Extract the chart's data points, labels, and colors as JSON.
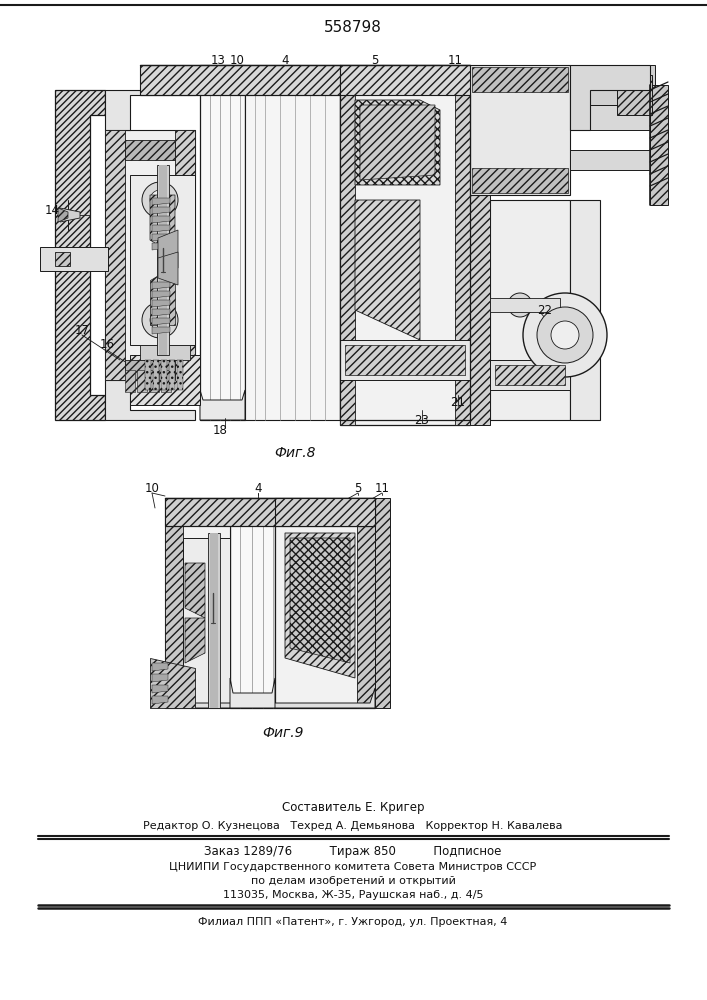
{
  "patent_number": "558798",
  "fig8_caption": "Фиг.8",
  "fig9_caption": "Фиг.9",
  "footer_line0": "Составитель Е. Кригер",
  "footer_line1": "Редактор О. Кузнецова   Техред А. Демьянова   Корректор Н. Кавалева",
  "footer_line2": "Заказ 1289/76          Тираж 850          Подписное",
  "footer_line3": "ЦНИИПИ Государственного комитета Совета Министров СССР",
  "footer_line4": "по делам изобретений и открытий",
  "footer_line5": "113035, Москва, Ж-35, Раушская наб., д. 4/5",
  "footer_line6": "Филиал ППП «Патент», г. Ужгород, ул. Проектная, 4",
  "bg_color": "#ffffff",
  "lc": "#1a1a1a"
}
